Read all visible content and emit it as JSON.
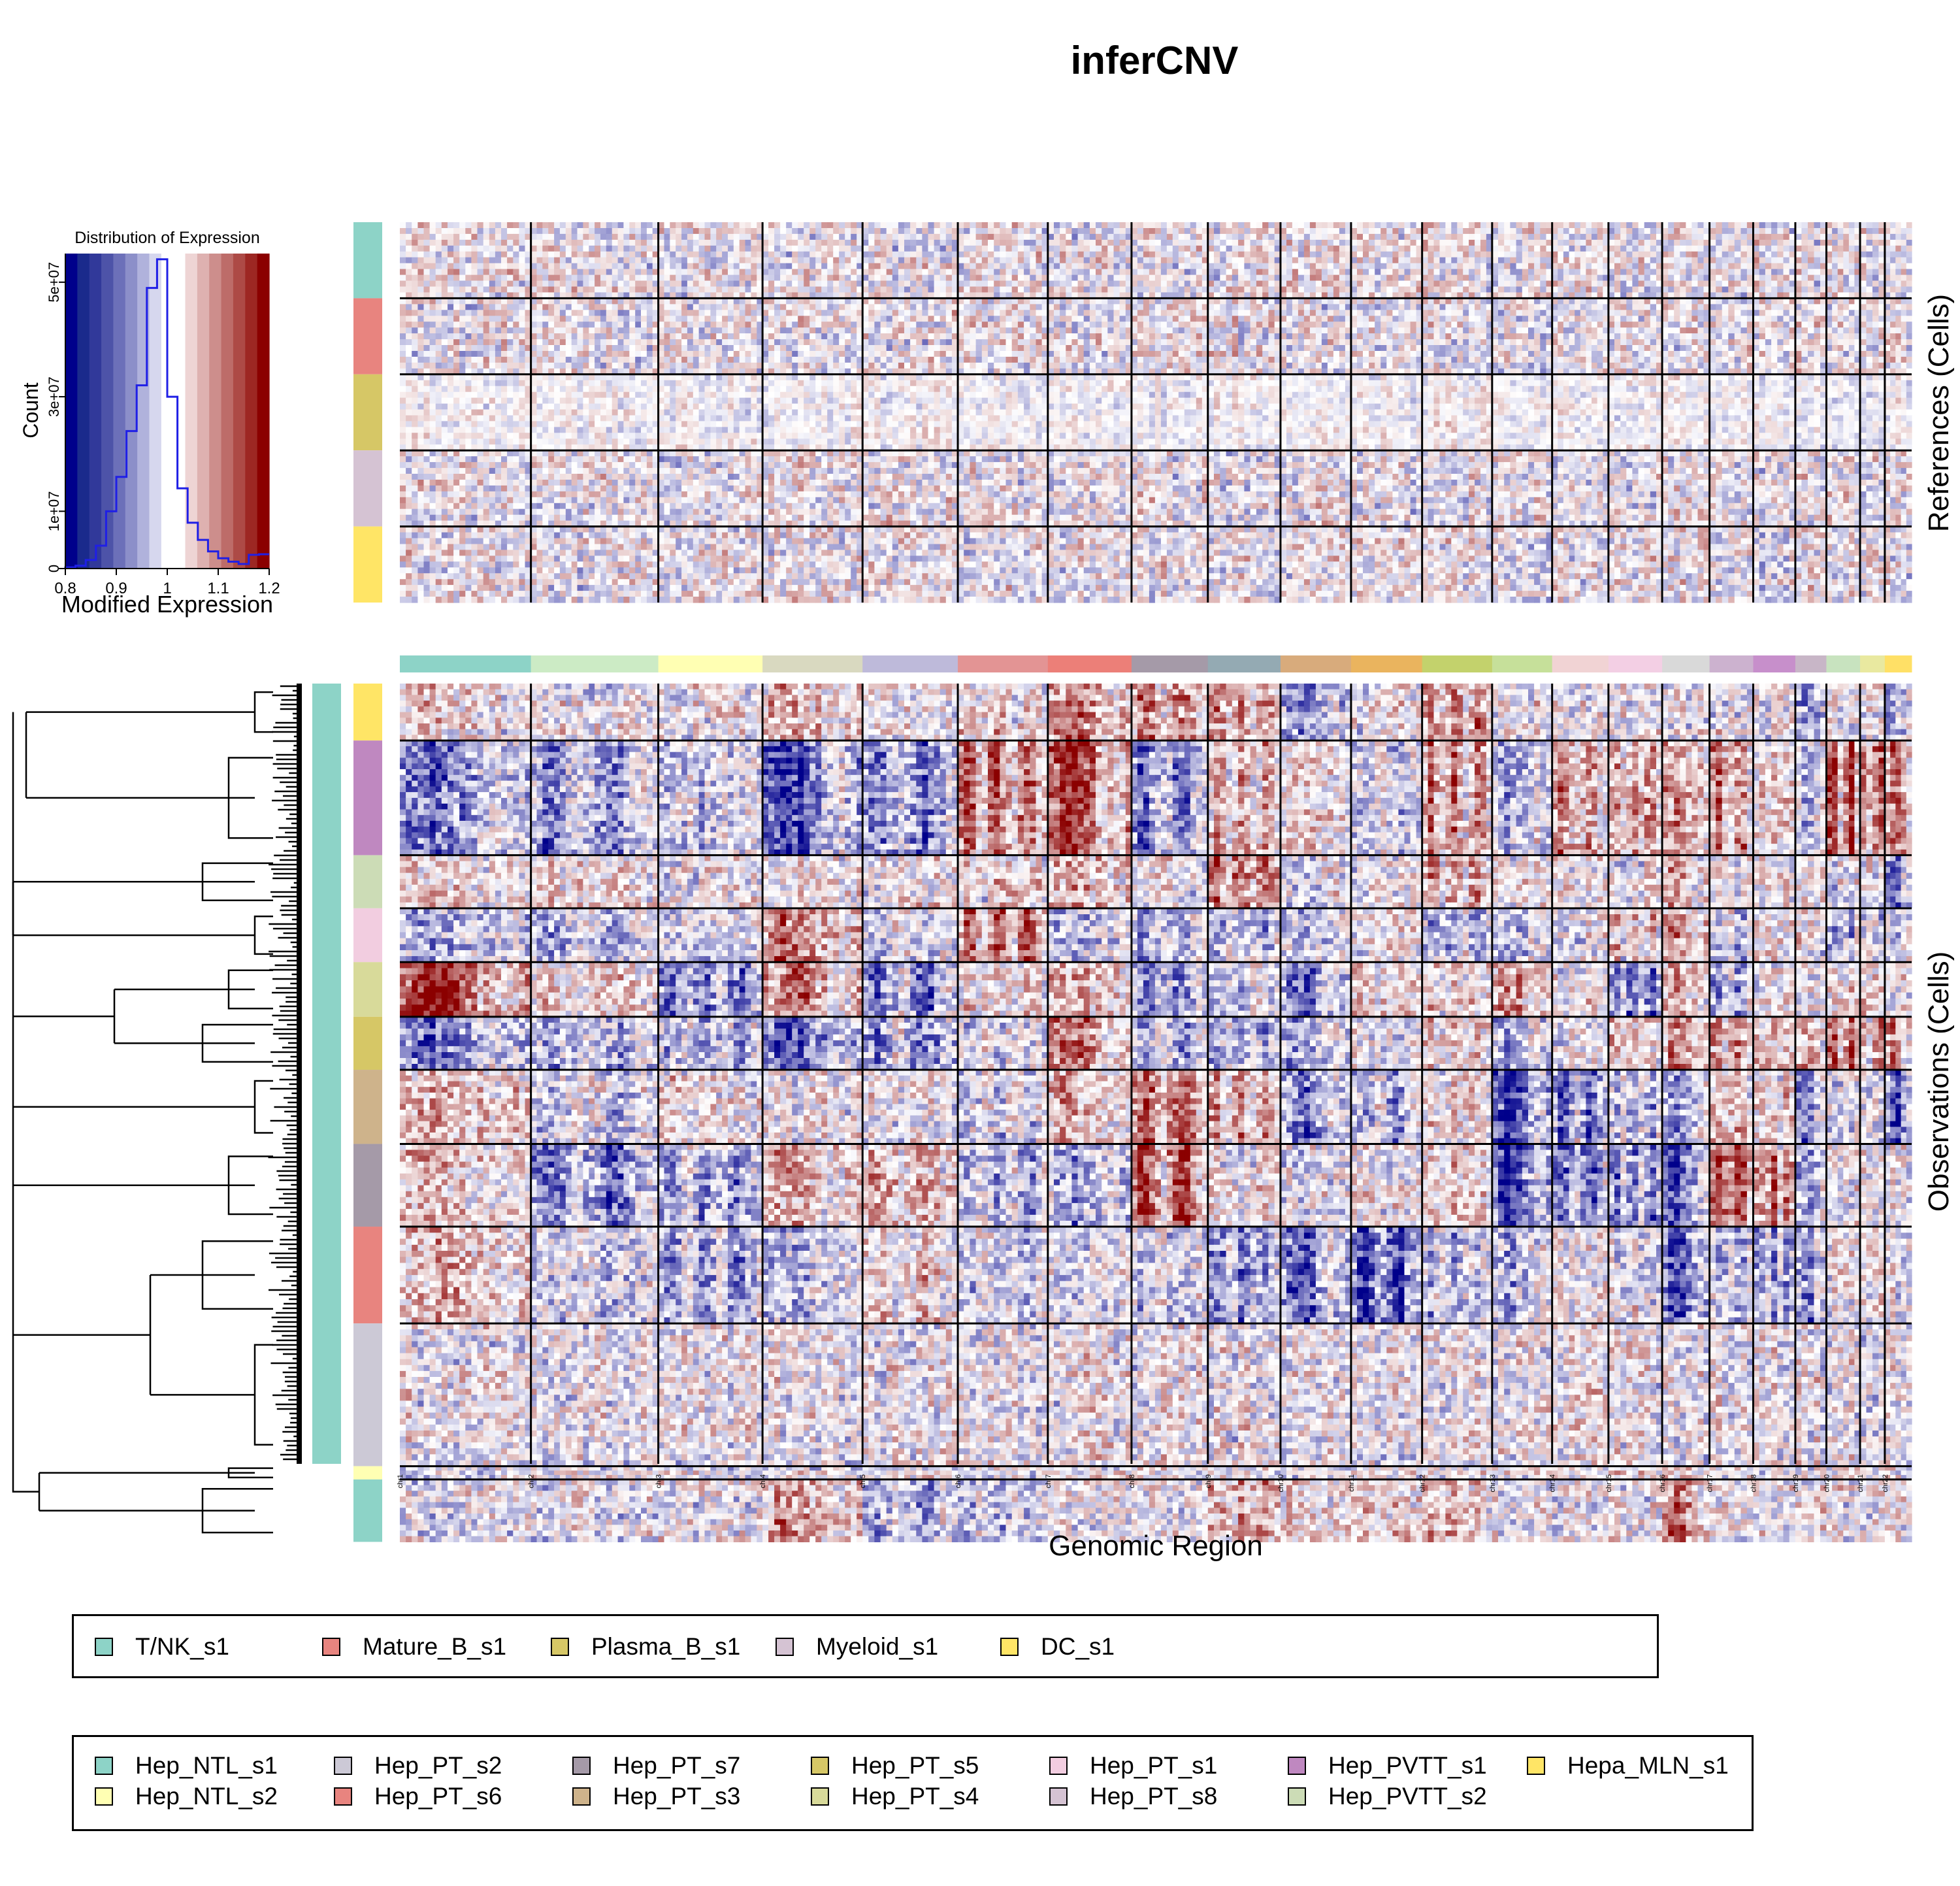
{
  "title": "inferCNV",
  "chart_data": [
    {
      "type": "histogram",
      "title": "Distribution of Expression",
      "xlabel": "Modified Expression",
      "ylabel": "Count",
      "xlim": [
        0.8,
        1.2
      ],
      "ylim": [
        0,
        55000000
      ],
      "x_ticks": [
        "0.8",
        "0.9",
        "1",
        "1.1",
        "1.2"
      ],
      "y_ticks": [
        "0",
        "1e+07",
        "3e+07",
        "5e+07"
      ],
      "y_tick_values": [
        0,
        10000000,
        30000000,
        50000000
      ],
      "bin_edges": [
        0.8,
        0.82,
        0.84,
        0.86,
        0.88,
        0.9,
        0.92,
        0.94,
        0.96,
        0.98,
        1.0,
        1.02,
        1.04,
        1.06,
        1.08,
        1.1,
        1.12,
        1.14,
        1.16,
        1.18,
        1.2
      ],
      "counts": [
        200000,
        500000,
        1500000,
        4000000,
        10000000,
        16000000,
        24000000,
        32000000,
        49000000,
        54000000,
        30000000,
        14000000,
        8000000,
        5000000,
        3000000,
        1800000,
        1200000,
        800000,
        2400000,
        2500000
      ],
      "color_scale": [
        "#00008b",
        "#1a2a8c",
        "#31399a",
        "#4d53a8",
        "#6c70b9",
        "#8c8fc9",
        "#b0b2dc",
        "#d6d7ee",
        "#ffffff",
        "#ffffff",
        "#eed4d4",
        "#deb1b0",
        "#cd8e8c",
        "#bd6c69",
        "#ad4a46",
        "#9d2723",
        "#8b0000"
      ]
    },
    {
      "type": "heatmap",
      "xlabel": "Genomic Region",
      "x_categories": [
        "chr1",
        "chr2",
        "chr3",
        "chr4",
        "chr5",
        "chr6",
        "chr7",
        "chr8",
        "chr9",
        "chr10",
        "chr11",
        "chr12",
        "chr13",
        "chr14",
        "chr15",
        "chr16",
        "chr17",
        "chr18",
        "chr19",
        "chr20",
        "chr21",
        "chr22"
      ],
      "chromosome_colors": [
        "#8dd3c7",
        "#ccebc5",
        "#ffffb3",
        "#d9d9c0",
        "#bebada",
        "#e39494",
        "#ec7f78",
        "#a59aa8",
        "#94aab3",
        "#d8ab7c",
        "#eab45e",
        "#c3d26c",
        "#c6e09a",
        "#f1d3d4",
        "#f3cfe4",
        "#d9d9d9",
        "#ccb2cf",
        "#c78fcb",
        "#c8b6c7",
        "#c8e3bf",
        "#e9e9a0",
        "#ffe066"
      ],
      "panels": [
        {
          "ylabel": "References (Cells)",
          "groups": [
            "T/NK_s1",
            "Mature_B_s1",
            "Plasma_B_s1",
            "Myeloid_s1",
            "DC_s1"
          ],
          "group_colors": [
            "#8dd3c7",
            "#e8847f",
            "#d6c766",
            "#d5c3d3",
            "#ffe566"
          ]
        },
        {
          "ylabel": "Observations (Cells)",
          "groups": [
            "Hepa_MLN_s1",
            "Hep_PVTT_s1",
            "Hep_PVTT_s2",
            "Hep_PT_s1",
            "Hep_PT_s4",
            "Hep_PT_s5",
            "Hep_PT_s3",
            "Hep_PT_s7",
            "Hep_PT_s6",
            "Hep_PT_s2",
            "Hep_NTL_s2",
            "Hep_NTL_s1"
          ],
          "group_colors": [
            "#ffe566",
            "#bf88c0",
            "#ccdcb6",
            "#f2cde0",
            "#d8da9a",
            "#d6c766",
            "#ceb38b",
            "#a59aa8",
            "#e8847f",
            "#ccc9d6",
            "#ffffb3",
            "#8dd3c7"
          ],
          "cnv_gain_pattern": "red bands on chr1q, chr7, chr8q, chr20 in several tumour groups",
          "cnv_loss_pattern": "blue bands on chr4, chr13, chr16q, chr17p in several tumour groups"
        }
      ]
    }
  ],
  "legend_references": {
    "items": [
      {
        "label": "T/NK_s1",
        "color": "#8dd3c7"
      },
      {
        "label": "Mature_B_s1",
        "color": "#e8847f"
      },
      {
        "label": "Plasma_B_s1",
        "color": "#d6c766"
      },
      {
        "label": "Myeloid_s1",
        "color": "#d5c3d3"
      },
      {
        "label": "DC_s1",
        "color": "#ffe566"
      }
    ]
  },
  "legend_observations": {
    "items": [
      {
        "label": "Hep_NTL_s1",
        "color": "#8dd3c7"
      },
      {
        "label": "Hep_NTL_s2",
        "color": "#ffffb3"
      },
      {
        "label": "Hep_PT_s2",
        "color": "#ccc9d6"
      },
      {
        "label": "Hep_PT_s6",
        "color": "#e8847f"
      },
      {
        "label": "Hep_PT_s7",
        "color": "#a59aa8"
      },
      {
        "label": "Hep_PT_s3",
        "color": "#ceb38b"
      },
      {
        "label": "Hep_PT_s5",
        "color": "#d6c766"
      },
      {
        "label": "Hep_PT_s4",
        "color": "#d8da9a"
      },
      {
        "label": "Hep_PT_s1",
        "color": "#f2cde0"
      },
      {
        "label": "Hep_PT_s8",
        "color": "#d5c3d3"
      },
      {
        "label": "Hep_PVTT_s1",
        "color": "#bf88c0"
      },
      {
        "label": "Hep_PVTT_s2",
        "color": "#ccdcb6"
      },
      {
        "label": "Hepa_MLN_s1",
        "color": "#ffe566"
      }
    ]
  }
}
